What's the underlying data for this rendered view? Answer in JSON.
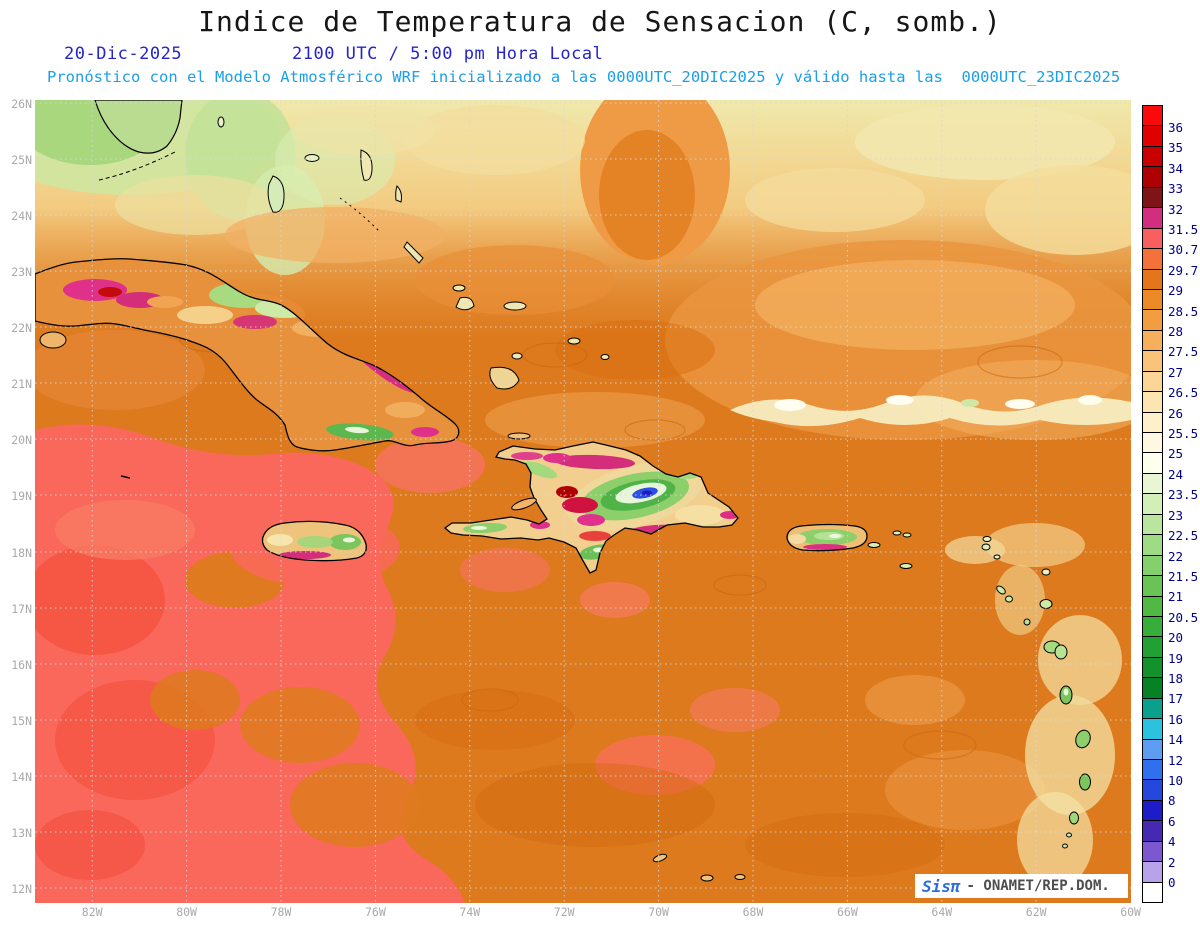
{
  "header": {
    "title": "Indice de Temperatura de Sensacion (C, somb.)",
    "date": "20-Dic-2025",
    "valid_time": "2100 UTC / 5:00 pm Hora Local",
    "model_note": "Pronóstico con el Modelo Atmosférico WRF inicializado a las 0000UTC_20DIC2025 y válido hasta las  0000UTC_23DIC2025"
  },
  "map": {
    "lat_labels": [
      "26N",
      "25N",
      "24N",
      "23N",
      "22N",
      "21N",
      "20N",
      "19N",
      "18N",
      "17N",
      "16N",
      "15N",
      "14N",
      "13N",
      "12N"
    ],
    "lon_labels": [
      "82W",
      "80W",
      "78W",
      "76W",
      "74W",
      "72W",
      "70W",
      "68W",
      "66W",
      "64W",
      "62W",
      "60W"
    ]
  },
  "colorbar": {
    "unit": "C",
    "labels": [
      "36",
      "35",
      "34",
      "33",
      "32",
      "31.5",
      "30.7",
      "29.7",
      "29",
      "28.5",
      "28",
      "27.5",
      "27",
      "26.5",
      "26",
      "25.5",
      "25",
      "24",
      "23.5",
      "23",
      "22.5",
      "22",
      "21.5",
      "21",
      "20.5",
      "20",
      "19",
      "18",
      "17",
      "16",
      "14",
      "12",
      "10",
      "8",
      "6",
      "4",
      "2",
      "0"
    ],
    "segment_colors": [
      "#fa0a0a",
      "#e10000",
      "#c80000",
      "#ae0000",
      "#7f1418",
      "#d22d7f",
      "#fa5f5f",
      "#f4713a",
      "#e4751a",
      "#ec8a28",
      "#f29d3f",
      "#f6b05c",
      "#f9c379",
      "#fbd696",
      "#fce5b0",
      "#fdf0cb",
      "#fef8e0",
      "#ffffee",
      "#e9f6d3",
      "#d2efb8",
      "#b9e59e",
      "#9fdb85",
      "#84d06c",
      "#69c455",
      "#4fb944",
      "#37ad3a",
      "#23a033",
      "#12912c",
      "#068225",
      "#0aa08c",
      "#2cc2df",
      "#5e9df2",
      "#2f70ee",
      "#2448dd",
      "#1c1cc8",
      "#4629b2",
      "#7d57d0",
      "#b8a2ea",
      "#ffffff"
    ]
  },
  "watermark": {
    "brand": "Sisπ",
    "text": "- ONAMET/REP.DOM."
  },
  "colors": {
    "header_blue": "#2525c8",
    "note_cyan": "#1b9fe8",
    "axis_gray": "#a9a9a9",
    "colorbar_label_blue": "#00008b",
    "field_base_orange": "#dd7a1e",
    "field_warm_salmon": "#f9685a"
  }
}
